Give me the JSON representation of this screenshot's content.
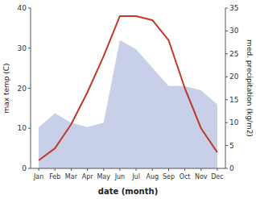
{
  "chart_data": {
    "type": "line",
    "categories": [
      "Jan",
      "Feb",
      "Mar",
      "Apr",
      "May",
      "Jun",
      "Jul",
      "Aug",
      "Sep",
      "Oct",
      "Nov",
      "Dec"
    ],
    "series": [
      {
        "type": "area",
        "color": "#c8cfe8",
        "axis": "y2",
        "values": [
          9,
          12,
          10,
          9,
          10,
          28,
          26,
          22,
          18,
          18,
          17,
          14
        ]
      },
      {
        "type": "line",
        "color": "#c0392b",
        "values": [
          2,
          5,
          11,
          19,
          28,
          38,
          38,
          37,
          32,
          20,
          10,
          4
        ]
      }
    ],
    "xlabel": "date (month)",
    "ylabel": "max temp (C)",
    "y2label": "med. precipitation (kg/m2)",
    "ylim": [
      0,
      40
    ],
    "yticks": [
      0,
      10,
      20,
      30,
      40
    ],
    "y2lim": [
      0,
      35
    ],
    "y2ticks": [
      0,
      5,
      10,
      15,
      20,
      25,
      30,
      35
    ],
    "grid": false
  }
}
